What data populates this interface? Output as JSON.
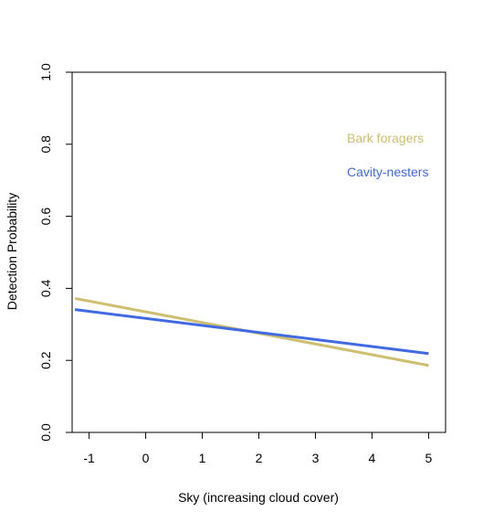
{
  "chart_data": {
    "type": "line",
    "title": "",
    "xlabel": "Sky (increasing cloud cover)",
    "ylabel": "Detection Probability",
    "xlim": [
      -1.3,
      5.3
    ],
    "ylim": [
      0.0,
      1.0
    ],
    "xticks": [
      "-1",
      "0",
      "1",
      "2",
      "3",
      "4",
      "5"
    ],
    "yticks": [
      "0.0",
      "0.2",
      "0.4",
      "0.6",
      "0.8",
      "1.0"
    ],
    "grid": false,
    "legend": "top-right",
    "series": [
      {
        "name": "Bark foragers",
        "color": "#CDBE70",
        "x": [
          -1.25,
          5.0
        ],
        "y": [
          0.372,
          0.186
        ]
      },
      {
        "name": "Cavity-nesters",
        "color": "#4169E1",
        "x": [
          -1.25,
          5.0
        ],
        "y": [
          0.341,
          0.219
        ]
      }
    ]
  }
}
